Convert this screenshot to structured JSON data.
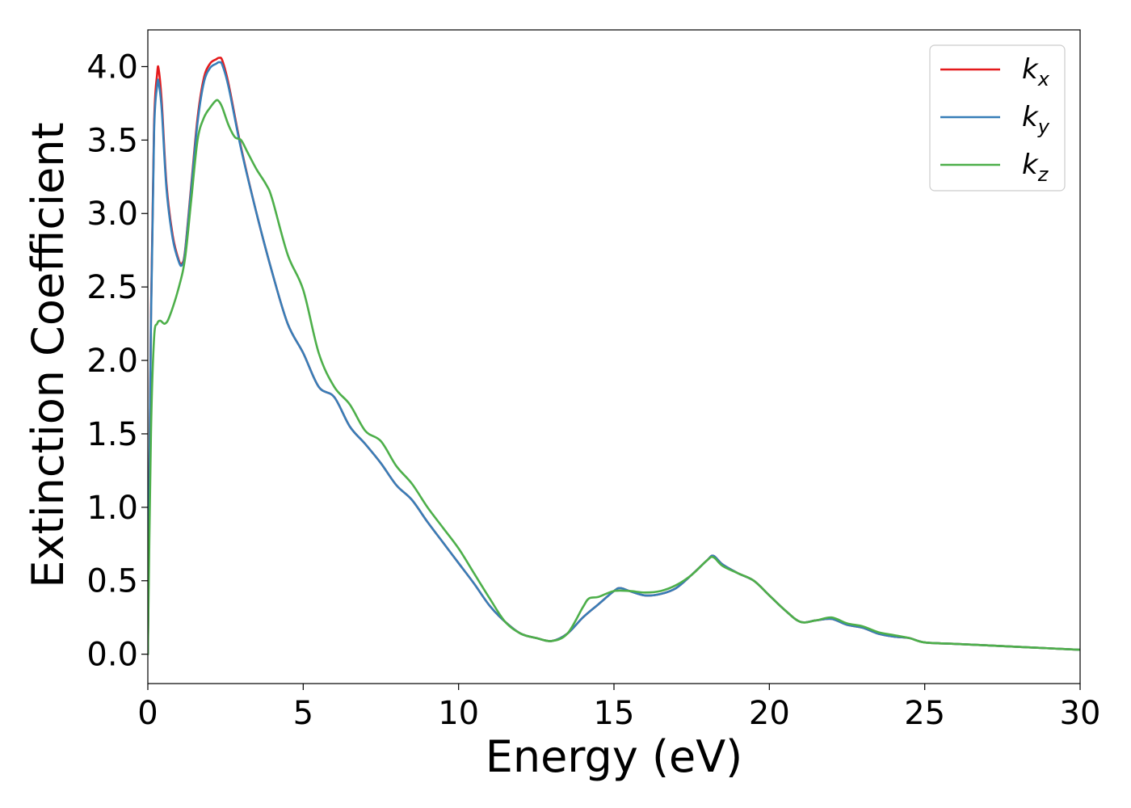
{
  "chart_data": {
    "type": "line",
    "title": "",
    "xlabel": "Energy (eV)",
    "ylabel": "Extinction Coefficient",
    "xlim": [
      0,
      30
    ],
    "ylim": [
      -0.2,
      4.25
    ],
    "xticks": [
      0,
      5,
      10,
      15,
      20,
      25,
      30
    ],
    "xtick_labels": [
      "0",
      "5",
      "10",
      "15",
      "20",
      "25",
      "30"
    ],
    "yticks": [
      0.0,
      0.5,
      1.0,
      1.5,
      2.0,
      2.5,
      3.0,
      3.5,
      4.0
    ],
    "ytick_labels": [
      "0.0",
      "0.5",
      "1.0",
      "1.5",
      "2.0",
      "2.5",
      "3.0",
      "3.5",
      "4.0"
    ],
    "grid": false,
    "legend_position": "top-right",
    "series": [
      {
        "name": "k",
        "subscript": "x",
        "color": "#e41a1c",
        "x": [
          0,
          0.1,
          0.2,
          0.3,
          0.35,
          0.45,
          0.6,
          0.8,
          1.0,
          1.1,
          1.2,
          1.4,
          1.6,
          1.8,
          2.0,
          2.2,
          2.3,
          2.4,
          2.6,
          3.0,
          3.5,
          4.0,
          4.5,
          5.0,
          5.5,
          6.0,
          6.5,
          7.0,
          7.5,
          8.0,
          8.5,
          9.0,
          9.5,
          10.0,
          10.5,
          11.0,
          11.5,
          12.0,
          12.5,
          13.0,
          13.5,
          14.0,
          14.5,
          15.0,
          15.2,
          15.5,
          16.0,
          16.5,
          17.0,
          17.5,
          18.0,
          18.2,
          18.5,
          19.0,
          19.5,
          20.0,
          20.5,
          21.0,
          21.5,
          22.0,
          22.5,
          23.0,
          23.5,
          24.0,
          24.5,
          25.0,
          26.0,
          27.0,
          28.0,
          29.0,
          30.0
        ],
        "y": [
          0.0,
          2.3,
          3.6,
          3.95,
          3.98,
          3.75,
          3.2,
          2.85,
          2.68,
          2.66,
          2.75,
          3.2,
          3.65,
          3.92,
          4.02,
          4.05,
          4.06,
          4.04,
          3.88,
          3.45,
          3.0,
          2.6,
          2.25,
          2.05,
          1.82,
          1.75,
          1.55,
          1.43,
          1.3,
          1.15,
          1.05,
          0.9,
          0.76,
          0.62,
          0.48,
          0.33,
          0.22,
          0.14,
          0.11,
          0.09,
          0.14,
          0.25,
          0.34,
          0.43,
          0.45,
          0.43,
          0.4,
          0.41,
          0.45,
          0.54,
          0.64,
          0.67,
          0.61,
          0.55,
          0.5,
          0.4,
          0.3,
          0.22,
          0.23,
          0.24,
          0.2,
          0.18,
          0.14,
          0.12,
          0.11,
          0.08,
          0.07,
          0.06,
          0.05,
          0.04,
          0.03
        ]
      },
      {
        "name": "k",
        "subscript": "y",
        "color": "#377eb8",
        "x": [
          0,
          0.1,
          0.2,
          0.3,
          0.35,
          0.45,
          0.6,
          0.8,
          1.0,
          1.1,
          1.2,
          1.4,
          1.6,
          1.8,
          2.0,
          2.2,
          2.3,
          2.4,
          2.6,
          3.0,
          3.5,
          4.0,
          4.5,
          5.0,
          5.5,
          6.0,
          6.5,
          7.0,
          7.5,
          8.0,
          8.5,
          9.0,
          9.5,
          10.0,
          10.5,
          11.0,
          11.5,
          12.0,
          12.5,
          13.0,
          13.5,
          14.0,
          14.5,
          15.0,
          15.2,
          15.5,
          16.0,
          16.5,
          17.0,
          17.5,
          18.0,
          18.2,
          18.5,
          19.0,
          19.5,
          20.0,
          20.5,
          21.0,
          21.5,
          22.0,
          22.5,
          23.0,
          23.5,
          24.0,
          24.5,
          25.0,
          26.0,
          27.0,
          28.0,
          29.0,
          30.0
        ],
        "y": [
          0.0,
          2.25,
          3.55,
          3.87,
          3.89,
          3.7,
          3.17,
          2.83,
          2.67,
          2.65,
          2.74,
          3.18,
          3.62,
          3.89,
          3.99,
          4.02,
          4.03,
          4.01,
          3.86,
          3.44,
          3.0,
          2.6,
          2.25,
          2.05,
          1.82,
          1.75,
          1.55,
          1.43,
          1.3,
          1.15,
          1.05,
          0.9,
          0.76,
          0.62,
          0.48,
          0.33,
          0.22,
          0.14,
          0.11,
          0.09,
          0.14,
          0.25,
          0.34,
          0.43,
          0.45,
          0.43,
          0.4,
          0.41,
          0.45,
          0.54,
          0.64,
          0.67,
          0.61,
          0.55,
          0.5,
          0.4,
          0.3,
          0.22,
          0.23,
          0.24,
          0.2,
          0.18,
          0.14,
          0.12,
          0.11,
          0.08,
          0.07,
          0.06,
          0.05,
          0.04,
          0.03
        ]
      },
      {
        "name": "k",
        "subscript": "z",
        "color": "#4daf4a",
        "x": [
          0,
          0.1,
          0.2,
          0.3,
          0.4,
          0.55,
          0.7,
          1.0,
          1.2,
          1.4,
          1.6,
          1.8,
          2.0,
          2.2,
          2.3,
          2.4,
          2.6,
          2.8,
          3.0,
          3.2,
          3.5,
          3.8,
          4.0,
          4.5,
          5.0,
          5.5,
          6.0,
          6.5,
          7.0,
          7.5,
          8.0,
          8.5,
          9.0,
          9.5,
          10.0,
          10.5,
          11.0,
          11.5,
          12.0,
          12.5,
          13.0,
          13.5,
          14.0,
          14.2,
          14.5,
          15.0,
          15.5,
          16.0,
          16.5,
          17.0,
          17.5,
          18.0,
          18.2,
          18.5,
          19.0,
          19.5,
          20.0,
          20.5,
          21.0,
          21.5,
          22.0,
          22.5,
          23.0,
          23.5,
          24.0,
          24.5,
          25.0,
          26.0,
          27.0,
          28.0,
          29.0,
          30.0
        ],
        "y": [
          0.0,
          1.5,
          2.15,
          2.25,
          2.27,
          2.25,
          2.3,
          2.5,
          2.7,
          3.1,
          3.5,
          3.65,
          3.72,
          3.77,
          3.76,
          3.72,
          3.6,
          3.52,
          3.5,
          3.42,
          3.3,
          3.2,
          3.1,
          2.72,
          2.48,
          2.05,
          1.82,
          1.7,
          1.52,
          1.45,
          1.28,
          1.16,
          1.0,
          0.86,
          0.72,
          0.55,
          0.38,
          0.22,
          0.14,
          0.11,
          0.09,
          0.14,
          0.32,
          0.38,
          0.39,
          0.43,
          0.43,
          0.42,
          0.43,
          0.47,
          0.54,
          0.64,
          0.66,
          0.6,
          0.55,
          0.5,
          0.4,
          0.3,
          0.22,
          0.23,
          0.25,
          0.21,
          0.19,
          0.15,
          0.13,
          0.11,
          0.08,
          0.07,
          0.06,
          0.05,
          0.04,
          0.03
        ]
      }
    ]
  }
}
